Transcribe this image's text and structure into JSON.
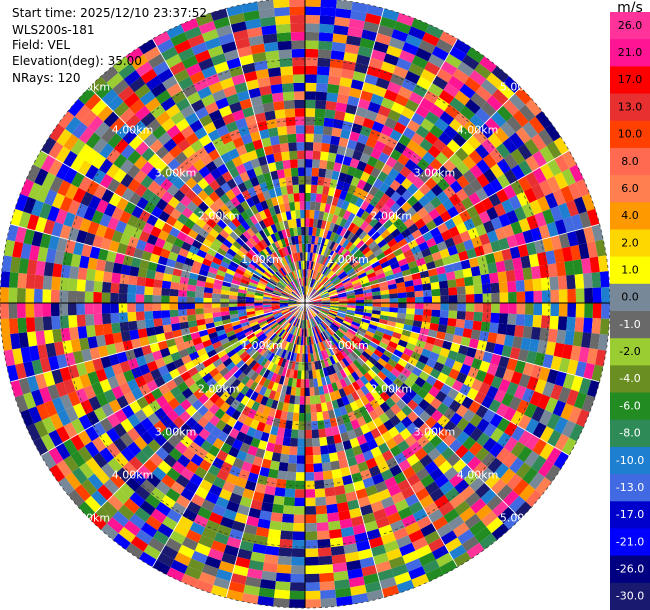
{
  "header": {
    "start_time": "Start time: 2025/12/10 23:37:52",
    "instrument": "WLS200s-181",
    "field": "Field: VEL",
    "elevation": "Elevation(deg): 35.00",
    "nrays": "NRays: 120"
  },
  "chart_data": {
    "type": "heatmap",
    "projection": "polar-ppi",
    "field": "VEL",
    "nrays": 120,
    "max_range_km": 5.0,
    "range_rings_km": [
      1.0,
      2.0,
      3.0,
      4.0,
      5.0
    ],
    "range_ring_labels": [
      "1.00km",
      "2.00km",
      "3.00km",
      "4.00km",
      "5.00km"
    ],
    "colorbar": {
      "unit": "m/s",
      "ticks": [
        "26.0",
        "21.0",
        "17.0",
        "13.0",
        "10.0",
        "8.0",
        "6.0",
        "4.0",
        "2.0",
        "1.0",
        "0.0",
        "-1.0",
        "-2.0",
        "-4.0",
        "-6.0",
        "-8.0",
        "-10.0",
        "-13.0",
        "-17.0",
        "-21.0",
        "-26.0",
        "-30.0"
      ],
      "colors": [
        "#ff3399",
        "#ff1493",
        "#ff0000",
        "#e83030",
        "#ff4000",
        "#ff6a50",
        "#ff7f50",
        "#ff9900",
        "#ffd700",
        "#ffff00",
        "#778899",
        "#696969",
        "#9acd32",
        "#6b8e23",
        "#228b22",
        "#2e8b57",
        "#1e7fd0",
        "#4169e1",
        "#0000cd",
        "#0000ff",
        "#000080",
        "#191970"
      ]
    }
  }
}
